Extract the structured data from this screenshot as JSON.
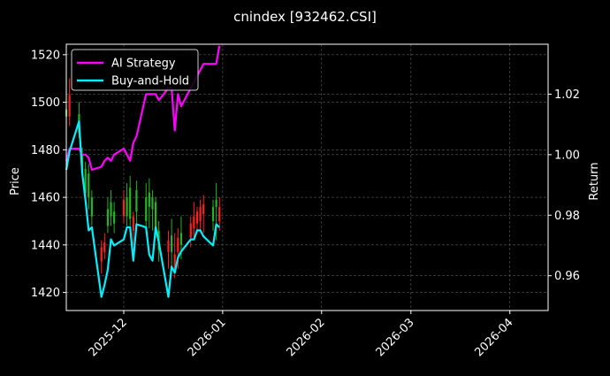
{
  "chart_data": {
    "type": "line",
    "title": "cnindex [932462.CSI]",
    "xlabel": "",
    "ylabel": "Price",
    "y2label": "Return",
    "x_ticks": [
      "2025-12",
      "2026-01",
      "2026-02",
      "2026-03",
      "2026-04"
    ],
    "y_ticks": [
      1420,
      1440,
      1460,
      1480,
      1500,
      1520
    ],
    "y2_ticks": [
      0.96,
      0.98,
      1.0,
      1.02
    ],
    "ylim": [
      1412.4,
      1524.4
    ],
    "y2lim": [
      0.9485,
      1.0365
    ],
    "xlim": [
      "2025-11-13",
      "2026-04-13"
    ],
    "grid": true,
    "legend_position": "top-left",
    "colors": {
      "background": "#000000",
      "grid": "#5a5a5a",
      "up_candle": "#ff2020",
      "down_candle": "#22b422",
      "strategy": "#ff00ff",
      "buy_hold": "#00f0ff"
    },
    "series": [
      {
        "name": "AI Strategy",
        "axis": "right",
        "x": [
          "2025-11-13",
          "2025-11-14",
          "2025-11-17",
          "2025-11-18",
          "2025-11-19",
          "2025-11-20",
          "2025-11-21",
          "2025-11-24",
          "2025-11-25",
          "2025-11-26",
          "2025-11-27",
          "2025-11-28",
          "2025-12-01",
          "2025-12-02",
          "2025-12-03",
          "2025-12-04",
          "2025-12-05",
          "2025-12-08",
          "2025-12-09",
          "2025-12-10",
          "2025-12-11",
          "2025-12-12",
          "2025-12-15",
          "2025-12-16",
          "2025-12-17",
          "2025-12-18",
          "2025-12-19",
          "2025-12-22",
          "2025-12-23",
          "2025-12-24",
          "2025-12-25",
          "2025-12-26",
          "2025-12-29",
          "2025-12-30",
          "2025-12-31"
        ],
        "values": [
          0.998,
          1.002,
          1.002,
          1.0,
          1.0,
          0.999,
          0.995,
          0.996,
          0.998,
          0.999,
          0.998,
          1.0,
          1.002,
          1.0,
          0.998,
          1.004,
          1.006,
          1.02,
          1.02,
          1.02,
          1.02,
          1.018,
          1.022,
          1.022,
          1.008,
          1.02,
          1.016,
          1.022,
          1.024,
          1.026,
          1.028,
          1.03,
          1.03,
          1.03,
          1.036
        ]
      },
      {
        "name": "Buy-and-Hold",
        "axis": "right",
        "x": [
          "2025-11-13",
          "2025-11-14",
          "2025-11-17",
          "2025-11-18",
          "2025-11-19",
          "2025-11-20",
          "2025-11-21",
          "2025-11-24",
          "2025-11-25",
          "2025-11-26",
          "2025-11-27",
          "2025-11-28",
          "2025-12-01",
          "2025-12-02",
          "2025-12-03",
          "2025-12-04",
          "2025-12-05",
          "2025-12-08",
          "2025-12-09",
          "2025-12-10",
          "2025-12-11",
          "2025-12-12",
          "2025-12-15",
          "2025-12-16",
          "2025-12-17",
          "2025-12-18",
          "2025-12-19",
          "2025-12-22",
          "2025-12-23",
          "2025-12-24",
          "2025-12-25",
          "2025-12-26",
          "2025-12-29",
          "2025-12-30",
          "2025-12-31"
        ],
        "values": [
          0.995,
          1.001,
          1.011,
          0.994,
          0.985,
          0.975,
          0.976,
          0.953,
          0.957,
          0.962,
          0.972,
          0.97,
          0.972,
          0.976,
          0.976,
          0.965,
          0.977,
          0.976,
          0.967,
          0.965,
          0.976,
          0.971,
          0.953,
          0.963,
          0.961,
          0.966,
          0.968,
          0.972,
          0.972,
          0.975,
          0.975,
          0.973,
          0.97,
          0.977,
          0.976
        ]
      }
    ],
    "candles": [
      {
        "date": "2025-11-13",
        "open": 1497,
        "close": 1494,
        "low": 1488,
        "high": 1502
      },
      {
        "date": "2025-11-14",
        "open": 1494,
        "close": 1503,
        "low": 1490,
        "high": 1510
      },
      {
        "date": "2025-11-17",
        "open": 1495,
        "close": 1487,
        "low": 1485,
        "high": 1500
      },
      {
        "date": "2025-11-18",
        "open": 1478,
        "close": 1470,
        "low": 1468,
        "high": 1481
      },
      {
        "date": "2025-11-19",
        "open": 1472,
        "close": 1462,
        "low": 1460,
        "high": 1475
      },
      {
        "date": "2025-11-20",
        "open": 1470,
        "close": 1460,
        "low": 1455,
        "high": 1474
      },
      {
        "date": "2025-11-21",
        "open": 1460,
        "close": 1452,
        "low": 1448,
        "high": 1463
      },
      {
        "date": "2025-11-24",
        "open": 1433,
        "close": 1439,
        "low": 1428,
        "high": 1442
      },
      {
        "date": "2025-11-25",
        "open": 1437,
        "close": 1441,
        "low": 1434,
        "high": 1445
      },
      {
        "date": "2025-11-26",
        "open": 1455,
        "close": 1448,
        "low": 1445,
        "high": 1460
      },
      {
        "date": "2025-11-27",
        "open": 1458,
        "close": 1452,
        "low": 1448,
        "high": 1463
      },
      {
        "date": "2025-11-28",
        "open": 1454,
        "close": 1449,
        "low": 1445,
        "high": 1458
      },
      {
        "date": "2025-12-01",
        "open": 1452,
        "close": 1459,
        "low": 1449,
        "high": 1463
      },
      {
        "date": "2025-12-02",
        "open": 1460,
        "close": 1452,
        "low": 1448,
        "high": 1466
      },
      {
        "date": "2025-12-03",
        "open": 1464,
        "close": 1451,
        "low": 1448,
        "high": 1469
      },
      {
        "date": "2025-12-04",
        "open": 1446,
        "close": 1452,
        "low": 1440,
        "high": 1454
      },
      {
        "date": "2025-12-05",
        "open": 1463,
        "close": 1454,
        "low": 1446,
        "high": 1467
      },
      {
        "date": "2025-12-08",
        "open": 1460,
        "close": 1450,
        "low": 1445,
        "high": 1466
      },
      {
        "date": "2025-12-09",
        "open": 1462,
        "close": 1456,
        "low": 1447,
        "high": 1468
      },
      {
        "date": "2025-12-10",
        "open": 1460,
        "close": 1455,
        "low": 1446,
        "high": 1463
      },
      {
        "date": "2025-12-11",
        "open": 1458,
        "close": 1447,
        "low": 1443,
        "high": 1460
      },
      {
        "date": "2025-12-12",
        "open": 1446,
        "close": 1438,
        "low": 1433,
        "high": 1450
      },
      {
        "date": "2025-12-15",
        "open": 1437,
        "close": 1442,
        "low": 1430,
        "high": 1446
      },
      {
        "date": "2025-12-16",
        "open": 1444,
        "close": 1437,
        "low": 1430,
        "high": 1451
      },
      {
        "date": "2025-12-17",
        "open": 1430,
        "close": 1436,
        "low": 1426,
        "high": 1445
      },
      {
        "date": "2025-12-18",
        "open": 1437,
        "close": 1443,
        "low": 1430,
        "high": 1447
      },
      {
        "date": "2025-12-19",
        "open": 1445,
        "close": 1440,
        "low": 1434,
        "high": 1452
      },
      {
        "date": "2025-12-22",
        "open": 1443,
        "close": 1449,
        "low": 1439,
        "high": 1452
      },
      {
        "date": "2025-12-23",
        "open": 1447,
        "close": 1452,
        "low": 1443,
        "high": 1458
      },
      {
        "date": "2025-12-24",
        "open": 1449,
        "close": 1454,
        "low": 1445,
        "high": 1456
      },
      {
        "date": "2025-12-25",
        "open": 1450,
        "close": 1456,
        "low": 1446,
        "high": 1459
      },
      {
        "date": "2025-12-26",
        "open": 1453,
        "close": 1457,
        "low": 1445,
        "high": 1461
      },
      {
        "date": "2025-12-29",
        "open": 1456,
        "close": 1450,
        "low": 1446,
        "high": 1459
      },
      {
        "date": "2025-12-30",
        "open": 1459,
        "close": 1456,
        "low": 1442,
        "high": 1466
      },
      {
        "date": "2025-12-31",
        "open": 1450,
        "close": 1456,
        "low": 1446,
        "high": 1460
      }
    ]
  }
}
